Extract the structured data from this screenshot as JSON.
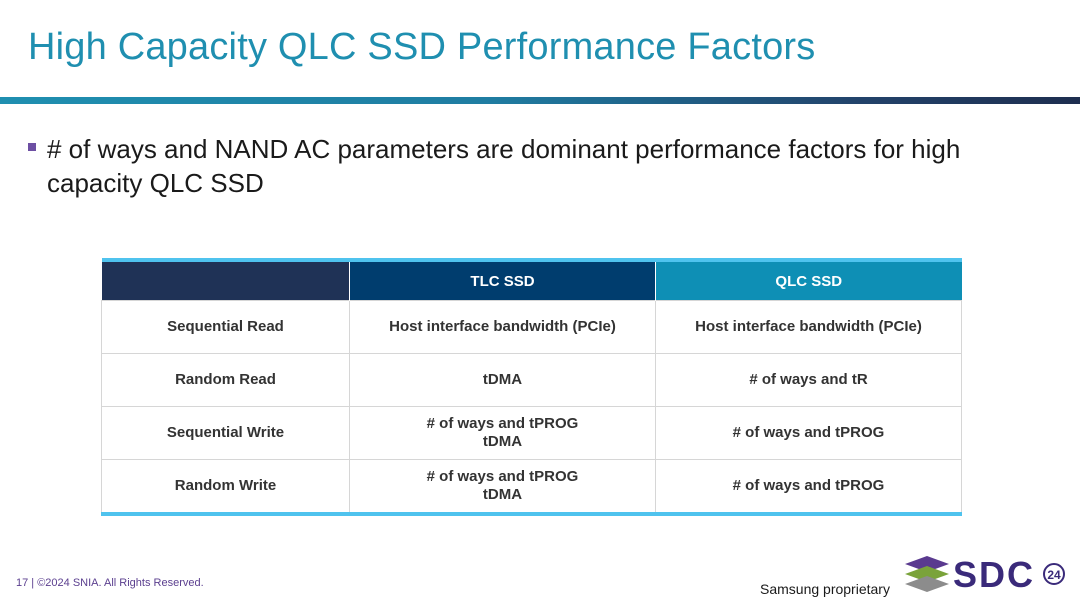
{
  "slide": {
    "title": "High Capacity QLC SSD Performance Factors",
    "bullet": "# of ways and NAND AC parameters are dominant performance factors for high capacity QLC SSD"
  },
  "table": {
    "headers": [
      "",
      "TLC SSD",
      "QLC SSD"
    ],
    "rows": [
      {
        "label": "Sequential Read",
        "tlc": [
          "Host interface bandwidth (PCIe)"
        ],
        "qlc": "Host interface bandwidth (PCIe)"
      },
      {
        "label": "Random Read",
        "tlc": [
          "tDMA"
        ],
        "qlc": "# of ways and tR"
      },
      {
        "label": "Sequential Write",
        "tlc": [
          "# of ways and tPROG",
          "tDMA"
        ],
        "qlc": "# of ways and tPROG"
      },
      {
        "label": "Random Write",
        "tlc": [
          "# of ways and tPROG",
          "tDMA"
        ],
        "qlc": "# of ways and tPROG"
      }
    ]
  },
  "footer": {
    "left": "17 | ©2024 SNIA. All Rights Reserved.",
    "right": "Samsung proprietary"
  },
  "logo": {
    "text": "SDC",
    "badge": "24"
  },
  "colors": {
    "title": "#1f8fb0",
    "header_dark": "#1f3256",
    "header_tlc": "#003d6e",
    "header_qlc": "#0e8fb5",
    "accent_border": "#4fc3ee",
    "bullet": "#6d4fa3"
  }
}
